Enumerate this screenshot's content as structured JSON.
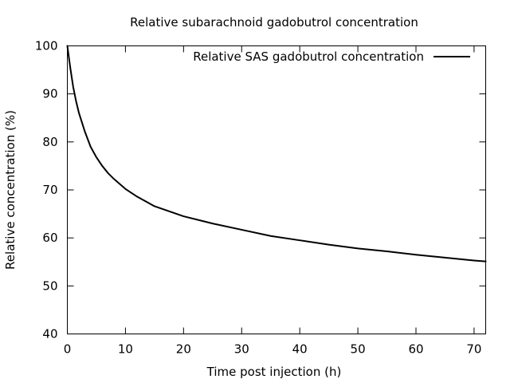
{
  "chart_data": {
    "type": "line",
    "title": "Relative subarachnoid gadobutrol concentration",
    "xlabel": "Time post injection (h)",
    "ylabel": "Relative concentration (%)",
    "xlim": [
      0,
      72
    ],
    "ylim": [
      40,
      100
    ],
    "xticks": [
      0,
      10,
      20,
      30,
      40,
      50,
      60,
      70
    ],
    "yticks": [
      40,
      50,
      60,
      70,
      80,
      90,
      100
    ],
    "grid": false,
    "legend_position": "top-right",
    "series": [
      {
        "name": "Relative SAS gadobutrol concentration",
        "color": "#000000",
        "x": [
          0,
          0.5,
          1,
          1.5,
          2,
          3,
          4,
          5,
          6,
          7,
          8,
          10,
          12,
          15,
          20,
          25,
          30,
          35,
          40,
          45,
          50,
          55,
          60,
          65,
          70,
          72
        ],
        "y": [
          100,
          95.5,
          91.5,
          88.5,
          86,
          82.2,
          79,
          76.8,
          75,
          73.5,
          72.3,
          70.2,
          68.6,
          66.6,
          64.5,
          63,
          61.7,
          60.4,
          59.5,
          58.6,
          57.8,
          57.2,
          56.5,
          55.9,
          55.3,
          55.1
        ]
      }
    ]
  }
}
